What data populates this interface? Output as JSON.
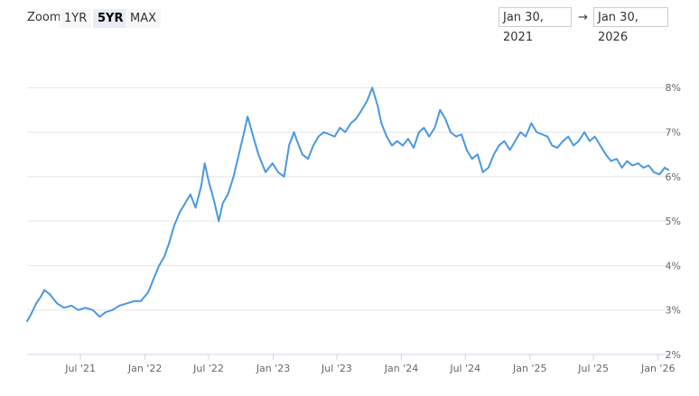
{
  "toolbar": {
    "zoom_label": "Zoom",
    "zoom_options": [
      "1YR",
      "5YR",
      "MAX"
    ],
    "active_zoom": "5YR",
    "from_date": "Jan 30, 2021",
    "separator": "→",
    "to_date": "Jan 30, 2026"
  },
  "colors": {
    "line": "#4a97e0",
    "grid": "#e6e6e6",
    "axis": "#ccd6eb"
  },
  "chart_data": {
    "type": "line",
    "title": "",
    "xlabel": "",
    "ylabel": "",
    "ylim": [
      2,
      8
    ],
    "y_ticks": [
      "2%",
      "3%",
      "4%",
      "5%",
      "6%",
      "7%",
      "8%"
    ],
    "x_ticks": [
      {
        "date": "2021-07-01",
        "label": "Jul '21"
      },
      {
        "date": "2022-01-01",
        "label": "Jan '22"
      },
      {
        "date": "2022-07-01",
        "label": "Jul '22"
      },
      {
        "date": "2023-01-01",
        "label": "Jan '23"
      },
      {
        "date": "2023-07-01",
        "label": "Jul '23"
      },
      {
        "date": "2024-01-01",
        "label": "Jan '24"
      },
      {
        "date": "2024-07-01",
        "label": "Jul '24"
      },
      {
        "date": "2025-01-01",
        "label": "Jan '25"
      },
      {
        "date": "2025-07-01",
        "label": "Jul '25"
      },
      {
        "date": "2026-01-01",
        "label": "Jan '26"
      }
    ],
    "grid": true,
    "legend": "none",
    "series": [
      {
        "x": [
          "2021-01-30",
          "2021-02-10",
          "2021-02-25",
          "2021-03-10",
          "2021-03-20",
          "2021-04-05",
          "2021-04-25",
          "2021-05-15",
          "2021-06-05",
          "2021-06-25",
          "2021-07-15",
          "2021-08-05",
          "2021-08-25",
          "2021-09-10",
          "2021-09-30",
          "2021-10-20",
          "2021-11-10",
          "2021-12-01",
          "2021-12-20",
          "2022-01-10",
          "2022-01-25",
          "2022-02-10",
          "2022-02-25",
          "2022-03-10",
          "2022-03-25",
          "2022-04-10",
          "2022-04-25",
          "2022-05-10",
          "2022-05-25",
          "2022-06-10",
          "2022-06-20",
          "2022-07-01",
          "2022-07-15",
          "2022-07-30",
          "2022-08-10",
          "2022-08-25",
          "2022-09-10",
          "2022-09-25",
          "2022-10-10",
          "2022-10-20",
          "2022-11-05",
          "2022-11-20",
          "2022-12-10",
          "2022-12-30",
          "2023-01-15",
          "2023-02-01",
          "2023-02-15",
          "2023-03-01",
          "2023-03-10",
          "2023-03-25",
          "2023-04-10",
          "2023-04-25",
          "2023-05-10",
          "2023-05-25",
          "2023-06-10",
          "2023-06-25",
          "2023-07-10",
          "2023-07-25",
          "2023-08-10",
          "2023-08-25",
          "2023-09-10",
          "2023-09-25",
          "2023-10-10",
          "2023-10-25",
          "2023-11-05",
          "2023-11-20",
          "2023-12-05",
          "2023-12-20",
          "2024-01-05",
          "2024-01-20",
          "2024-02-05",
          "2024-02-20",
          "2024-03-05",
          "2024-03-20",
          "2024-04-05",
          "2024-04-20",
          "2024-05-05",
          "2024-05-20",
          "2024-06-05",
          "2024-06-20",
          "2024-07-05",
          "2024-07-20",
          "2024-08-05",
          "2024-08-20",
          "2024-09-05",
          "2024-09-20",
          "2024-10-05",
          "2024-10-20",
          "2024-11-05",
          "2024-11-20",
          "2024-12-05",
          "2024-12-20",
          "2025-01-05",
          "2025-01-20",
          "2025-02-05",
          "2025-02-20",
          "2025-03-05",
          "2025-03-20",
          "2025-04-05",
          "2025-04-20",
          "2025-05-05",
          "2025-05-20",
          "2025-06-05",
          "2025-06-20",
          "2025-07-05",
          "2025-07-20",
          "2025-08-05",
          "2025-08-20",
          "2025-09-05",
          "2025-09-20",
          "2025-10-05",
          "2025-10-20",
          "2025-11-05",
          "2025-11-20",
          "2025-12-05",
          "2025-12-20",
          "2026-01-05",
          "2026-01-20",
          "2026-01-30"
        ],
        "y": [
          2.75,
          2.9,
          3.15,
          3.3,
          3.45,
          3.35,
          3.15,
          3.05,
          3.1,
          3.0,
          3.05,
          3.0,
          2.85,
          2.95,
          3.0,
          3.1,
          3.15,
          3.2,
          3.2,
          3.4,
          3.7,
          4.0,
          4.2,
          4.5,
          4.9,
          5.2,
          5.4,
          5.6,
          5.3,
          5.8,
          6.3,
          5.9,
          5.5,
          5.0,
          5.4,
          5.6,
          6.0,
          6.5,
          7.0,
          7.35,
          6.9,
          6.5,
          6.1,
          6.3,
          6.1,
          6.0,
          6.7,
          7.0,
          6.8,
          6.5,
          6.4,
          6.7,
          6.9,
          7.0,
          6.95,
          6.9,
          7.1,
          7.0,
          7.2,
          7.3,
          7.5,
          7.7,
          8.0,
          7.6,
          7.2,
          6.9,
          6.7,
          6.8,
          6.7,
          6.85,
          6.65,
          7.0,
          7.1,
          6.9,
          7.1,
          7.5,
          7.3,
          7.0,
          6.9,
          6.95,
          6.6,
          6.4,
          6.5,
          6.1,
          6.2,
          6.5,
          6.7,
          6.8,
          6.6,
          6.8,
          7.0,
          6.9,
          7.2,
          7.0,
          6.95,
          6.9,
          6.7,
          6.65,
          6.8,
          6.9,
          6.7,
          6.8,
          7.0,
          6.8,
          6.9,
          6.7,
          6.5,
          6.35,
          6.4,
          6.2,
          6.35,
          6.25,
          6.3,
          6.2,
          6.25,
          6.1,
          6.05,
          6.2,
          6.15
        ]
      }
    ]
  }
}
